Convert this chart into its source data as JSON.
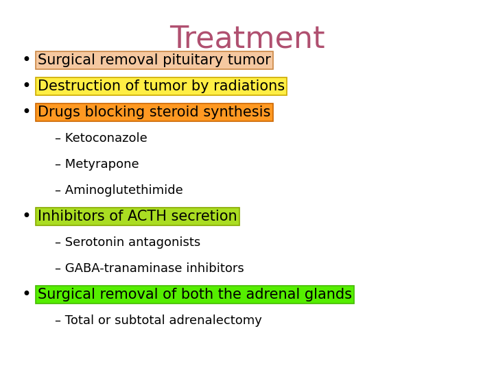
{
  "title": "Treatment",
  "title_color": "#b05070",
  "title_fontsize": 32,
  "bg_color": "#ffffff",
  "bullet_items": [
    {
      "text": "Surgical removal pituitary tumor",
      "highlight": "#f5c8a0",
      "border": "#cc8844",
      "bullet": true,
      "indent": 0,
      "fontsize": 15
    },
    {
      "text": "Destruction of tumor by radiations",
      "highlight": "#ffee44",
      "border": "#ccaa00",
      "bullet": true,
      "indent": 0,
      "fontsize": 15
    },
    {
      "text": "Drugs blocking steroid synthesis",
      "highlight": "#ff9922",
      "border": "#cc6600",
      "bullet": true,
      "indent": 0,
      "fontsize": 15
    },
    {
      "text": "– Ketoconazole",
      "highlight": null,
      "border": null,
      "bullet": false,
      "indent": 1,
      "fontsize": 13
    },
    {
      "text": "– Metyrapone",
      "highlight": null,
      "border": null,
      "bullet": false,
      "indent": 1,
      "fontsize": 13
    },
    {
      "text": "– Aminoglutethimide",
      "highlight": null,
      "border": null,
      "bullet": false,
      "indent": 1,
      "fontsize": 13
    },
    {
      "text": "Inhibitors of ACTH secretion",
      "highlight": "#aadd22",
      "border": "#88aa00",
      "bullet": true,
      "indent": 0,
      "fontsize": 15
    },
    {
      "text": "– Serotonin antagonists",
      "highlight": null,
      "border": null,
      "bullet": false,
      "indent": 1,
      "fontsize": 13
    },
    {
      "text": "– GABA-tranaminase inhibitors",
      "highlight": null,
      "border": null,
      "bullet": false,
      "indent": 1,
      "fontsize": 13
    },
    {
      "text": "Surgical removal of both the adrenal glands",
      "highlight": "#55ee00",
      "border": "#44bb00",
      "bullet": true,
      "indent": 0,
      "fontsize": 15
    },
    {
      "text": "– Total or subtotal adrenalectomy",
      "highlight": null,
      "border": null,
      "bullet": false,
      "indent": 1,
      "fontsize": 13
    }
  ]
}
